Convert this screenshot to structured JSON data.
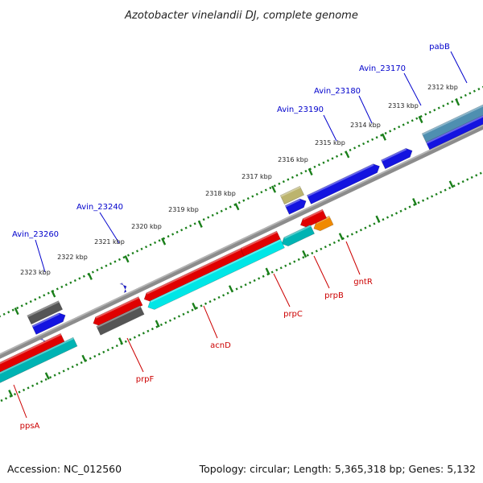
{
  "title": "Azotobacter vinelandii DJ, complete genome",
  "accession": "Accession: NC_012560",
  "summary": "Topology: circular; Length: 5,365,318 bp; Genes: 5,132",
  "colors": {
    "background": "#ffffff",
    "backbone": "#8c8c8c",
    "ruler_ticks": "#1a7f1a",
    "forward_label": "#0000cc",
    "reverse_label": "#cc0000"
  },
  "ruler_labels": [
    "2312 kbp",
    "2313 kbp",
    "2314 kbp",
    "2315 kbp",
    "2316 kbp",
    "2317 kbp",
    "2318 kbp",
    "2319 kbp",
    "2320 kbp",
    "2321 kbp",
    "2322 kbp",
    "2323 kbp"
  ],
  "forward_gene_labels": [
    "pabB",
    "Avin_23170",
    "Avin_23180",
    "Avin_23190",
    "Avin_23240",
    "Avin_23260"
  ],
  "reverse_gene_labels": [
    "gntR",
    "prpB",
    "prpC",
    "acnD",
    "prpF",
    "ppsA"
  ]
}
